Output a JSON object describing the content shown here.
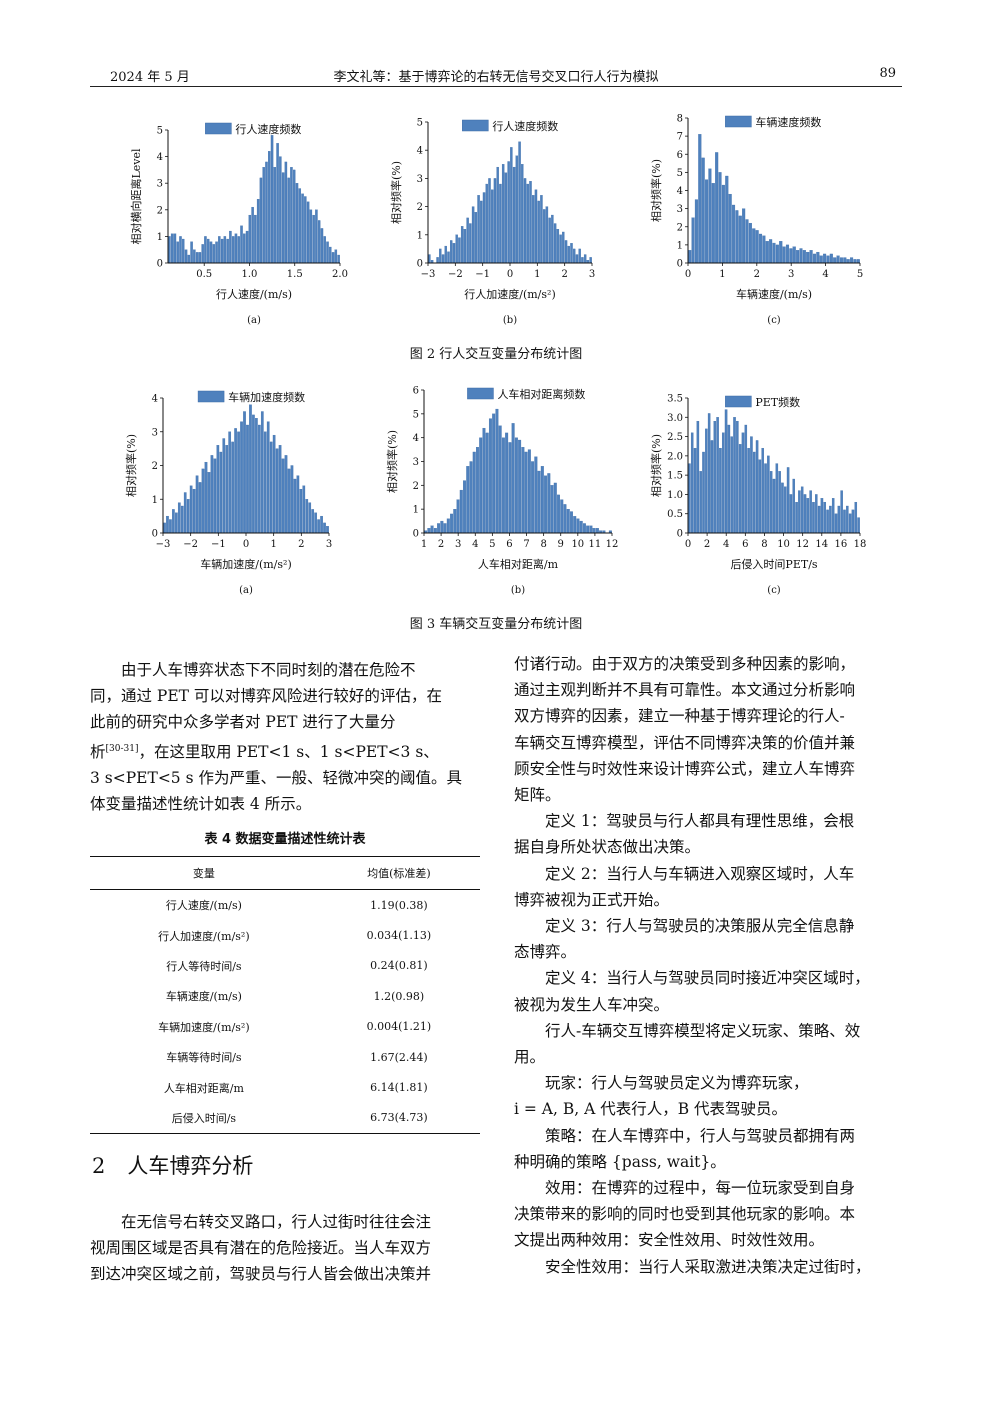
{
  "header": {
    "left": "2024 年 5 月",
    "center": "李文礼等：基于博弈论的右转无信号交叉口行人行为模拟",
    "right": "89"
  },
  "figure2": {
    "caption": "图 2    行人交互变量分布统计图",
    "panels": [
      {
        "letter": "(a)",
        "legend": "行人速度频数",
        "xlabel": "行人速度/(m/s)",
        "ylabel": "相对横向距离Level"
      },
      {
        "letter": "(b)",
        "legend": "行人速度频数",
        "xlabel": "行人加速度/(m/s²)",
        "ylabel": "相对频率(%)"
      },
      {
        "letter": "(c)",
        "legend": "车辆速度频数",
        "xlabel": "车辆速度/(m/s)",
        "ylabel": "相对频率(%)"
      }
    ]
  },
  "figure3": {
    "caption": "图 3    车辆交互变量分布统计图",
    "panels": [
      {
        "letter": "(a)",
        "legend": "车辆加速度频数",
        "xlabel": "车辆加速度/(m/s²)",
        "ylabel": "相对频率(%)"
      },
      {
        "letter": "(b)",
        "legend": "人车相对距离频数",
        "xlabel": "人车相对距离/m",
        "ylabel": "相对频率(%)"
      },
      {
        "letter": "(c)",
        "legend": "PET频数",
        "xlabel": "后侵入时间PET/s",
        "ylabel": "相对频率(%)"
      }
    ]
  },
  "chart_data": [
    {
      "type": "bar",
      "title": "",
      "xlabel": "行人速度/(m/s)",
      "ylabel": "相对横向距离Level",
      "legend": "行人速度频数",
      "xlim": [
        0.1,
        2.0
      ],
      "ylim": [
        0,
        5
      ],
      "xticks": [
        "0.5",
        "1.0",
        "1.5",
        "2.0"
      ],
      "yticks": [
        "0",
        "1",
        "2",
        "3",
        "4",
        "5"
      ],
      "values": [
        1.0,
        1.1,
        1.1,
        0.8,
        1.0,
        0.9,
        0.5,
        0.3,
        0.8,
        0.5,
        0.4,
        0.4,
        0.7,
        1.0,
        0.9,
        0.8,
        0.7,
        0.8,
        1.0,
        0.9,
        1.0,
        0.9,
        1.2,
        1.0,
        1.1,
        1.0,
        1.4,
        1.1,
        1.2,
        1.8,
        2.1,
        1.8,
        2.4,
        3.2,
        3.6,
        3.8,
        4.2,
        4.8,
        3.6,
        4.5,
        4.0,
        3.4,
        3.8,
        3.2,
        3.6,
        3.5,
        3.0,
        2.8,
        2.6,
        2.5,
        2.3,
        2.0,
        1.8,
        2.0,
        1.6,
        1.3,
        1.0,
        0.8,
        0.6,
        0.4,
        0.5,
        0.3
      ]
    },
    {
      "type": "bar",
      "title": "",
      "xlabel": "行人加速度/(m/s²)",
      "ylabel": "相对频率(%)",
      "legend": "行人速度频数",
      "xlim": [
        -3,
        3
      ],
      "ylim": [
        0,
        5
      ],
      "xticks": [
        "−3",
        "−2",
        "−1",
        "0",
        "1",
        "2",
        "3"
      ],
      "yticks": [
        "0",
        "1",
        "2",
        "3",
        "4",
        "5"
      ],
      "values": [
        0.3,
        0.1,
        0.0,
        0.2,
        0.5,
        0.3,
        0.6,
        0.4,
        0.8,
        0.7,
        1.0,
        0.9,
        1.3,
        1.2,
        1.6,
        1.4,
        2.0,
        1.8,
        2.4,
        2.2,
        2.5,
        2.8,
        3.0,
        2.6,
        3.0,
        3.4,
        2.8,
        3.5,
        3.2,
        3.6,
        4.1,
        3.4,
        3.8,
        4.3,
        3.5,
        3.0,
        2.8,
        2.9,
        2.4,
        2.6,
        2.2,
        2.4,
        1.9,
        2.0,
        1.6,
        1.7,
        1.4,
        1.2,
        1.0,
        1.1,
        0.8,
        0.6,
        0.7,
        0.5,
        0.3,
        0.5,
        0.2,
        0.3,
        0.1,
        0.2
      ]
    },
    {
      "type": "bar",
      "title": "",
      "xlabel": "车辆速度/(m/s)",
      "ylabel": "相对频率(%)",
      "legend": "车辆速度频数",
      "xlim": [
        0,
        5
      ],
      "ylim": [
        0,
        8
      ],
      "xticks": [
        "0",
        "1",
        "2",
        "3",
        "4",
        "5"
      ],
      "yticks": [
        "0",
        "1",
        "2",
        "3",
        "4",
        "5",
        "6",
        "7",
        "8"
      ],
      "values": [
        0.7,
        2.5,
        3.5,
        7.1,
        5.8,
        4.6,
        5.2,
        4.4,
        6.1,
        5.0,
        4.3,
        4.8,
        3.8,
        3.2,
        2.9,
        2.6,
        3.0,
        2.4,
        2.2,
        1.9,
        1.8,
        1.6,
        1.5,
        1.2,
        1.3,
        1.1,
        1.0,
        1.2,
        0.9,
        1.0,
        0.8,
        0.9,
        0.7,
        0.8,
        0.7,
        0.6,
        0.7,
        0.5,
        0.6,
        0.4,
        0.5,
        0.4,
        0.5,
        0.3,
        0.4,
        0.3,
        0.3,
        0.2,
        0.3,
        0.2,
        0.2
      ]
    },
    {
      "type": "bar",
      "title": "",
      "xlabel": "车辆加速度/(m/s²)",
      "ylabel": "相对频率(%)",
      "legend": "车辆加速度频数",
      "xlim": [
        -3,
        3
      ],
      "ylim": [
        0,
        4
      ],
      "xticks": [
        "−3",
        "−2",
        "−1",
        "0",
        "1",
        "2",
        "3"
      ],
      "yticks": [
        "0",
        "1",
        "2",
        "3",
        "4"
      ],
      "values": [
        0.3,
        0.5,
        0.4,
        0.7,
        0.6,
        0.9,
        0.8,
        1.2,
        1.0,
        1.4,
        1.3,
        1.7,
        1.5,
        1.9,
        2.1,
        1.8,
        2.3,
        2.2,
        2.6,
        2.4,
        2.8,
        2.6,
        3.0,
        2.7,
        3.1,
        3.0,
        3.3,
        3.6,
        3.2,
        3.8,
        3.5,
        3.4,
        3.2,
        3.6,
        3.0,
        3.3,
        2.7,
        2.9,
        2.5,
        2.6,
        2.2,
        2.3,
        1.9,
        2.0,
        1.6,
        1.7,
        1.3,
        1.4,
        1.0,
        0.9,
        0.7,
        0.6,
        0.4,
        0.5,
        0.3,
        0.2
      ]
    },
    {
      "type": "bar",
      "title": "",
      "xlabel": "人车相对距离/m",
      "ylabel": "相对频率(%)",
      "legend": "人车相对距离频数",
      "xlim": [
        1,
        12
      ],
      "ylim": [
        0,
        6
      ],
      "xticks": [
        "1",
        "2",
        "3",
        "4",
        "5",
        "6",
        "7",
        "8",
        "9",
        "10",
        "11",
        "12"
      ],
      "yticks": [
        "0",
        "1",
        "2",
        "3",
        "4",
        "5",
        "6"
      ],
      "values": [
        0.1,
        0.2,
        0.3,
        0.2,
        0.4,
        0.5,
        0.4,
        0.6,
        0.8,
        1.0,
        1.4,
        1.8,
        2.2,
        2.8,
        3.0,
        3.4,
        3.6,
        4.0,
        4.4,
        4.2,
        4.8,
        5.0,
        5.2,
        4.5,
        4.0,
        4.2,
        3.8,
        4.6,
        4.0,
        3.9,
        3.6,
        3.4,
        3.5,
        3.0,
        3.2,
        2.6,
        2.8,
        2.4,
        2.5,
        2.0,
        2.1,
        1.6,
        1.4,
        1.2,
        1.0,
        0.9,
        0.7,
        0.6,
        0.5,
        0.4,
        0.3,
        0.3,
        0.2,
        0.2,
        0.1,
        0.1,
        0.0,
        0.1
      ]
    },
    {
      "type": "bar",
      "title": "",
      "xlabel": "后侵入时间PET/s",
      "ylabel": "相对频率(%)",
      "legend": "PET频数",
      "xlim": [
        0,
        18
      ],
      "ylim": [
        0,
        3.5
      ],
      "xticks": [
        "0",
        "2",
        "4",
        "6",
        "8",
        "10",
        "12",
        "14",
        "16",
        "18"
      ],
      "yticks": [
        "0",
        "0.5",
        "1.0",
        "1.5",
        "2.0",
        "2.5",
        "3.0",
        "3.5"
      ],
      "values": [
        1.8,
        2.6,
        2.2,
        2.9,
        1.6,
        2.1,
        2.7,
        3.1,
        2.4,
        2.9,
        3.0,
        2.2,
        2.6,
        3.2,
        2.8,
        2.5,
        3.0,
        2.9,
        2.3,
        2.6,
        2.8,
        2.2,
        2.5,
        2.1,
        2.4,
        1.9,
        2.2,
        1.8,
        2.0,
        1.6,
        1.4,
        1.8,
        1.6,
        1.3,
        1.2,
        1.7,
        1.0,
        1.4,
        0.8,
        1.1,
        1.2,
        1.0,
        0.9,
        1.1,
        0.8,
        1.0,
        0.7,
        0.9,
        0.8,
        0.6,
        0.7,
        0.9,
        0.5,
        0.7,
        1.1,
        0.6,
        0.7,
        0.5,
        0.6,
        0.8,
        0.4
      ]
    }
  ],
  "left_text": {
    "p1_l1": "由于人车博弈状态下不同时刻的潜在危险不",
    "p1_l2": "同，通过 PET 可以对博弈风险进行较好的评估，在",
    "p1_l3": "此前的研究中众多学者对 PET 进行了大量分",
    "p1_l4a": "析",
    "p1_l4cite": "[30-31]",
    "p1_l4b": "，在这里取用 PET<1 s、1 s<PET<3 s、",
    "p1_l5": "3 s<PET<5 s 作为严重、一般、轻微冲突的阈值。具",
    "p1_l6": "体变量描述性统计如表 4 所示。"
  },
  "table4": {
    "title": "表 4    数据变量描述性统计表",
    "headers": [
      "变量",
      "均值(标准差)"
    ],
    "rows": [
      [
        "行人速度/(m/s)",
        "1.19(0.38)"
      ],
      [
        "行人加速度/(m/s²)",
        "0.034(1.13)"
      ],
      [
        "行人等待时间/s",
        "0.24(0.81)"
      ],
      [
        "车辆速度/(m/s)",
        "1.2(0.98)"
      ],
      [
        "车辆加速度/(m/s²)",
        "0.004(1.21)"
      ],
      [
        "车辆等待时间/s",
        "1.67(2.44)"
      ],
      [
        "人车相对距离/m",
        "6.14(1.81)"
      ],
      [
        "后侵入时间/s",
        "6.73(4.73)"
      ]
    ]
  },
  "section2": {
    "number": "2",
    "title": "人车博弈分析",
    "p_l1": "在无信号右转交叉路口，行人过街时往往会注",
    "p_l2": "视周围区域是否具有潜在的危险接近。当人车双方",
    "p_l3": "到达冲突区域之前，驾驶员与行人皆会做出决策并"
  },
  "right_text": {
    "l1": "付诸行动。由于双方的决策受到多种因素的影响，",
    "l2": "通过主观判断并不具有可靠性。本文通过分析影响",
    "l3": "双方博弈的因素，建立一种基于博弈理论的行人-",
    "l4": "车辆交互博弈模型，评估不同博弈决策的价值并兼",
    "l5": "顾安全性与时效性来设计博弈公式，建立人车博弈",
    "l6": "矩阵。",
    "d1_l1": "定义 1：驾驶员与行人都具有理性思维，会根",
    "d1_l2": "据自身所处状态做出决策。",
    "d2_l1": "定义 2：当行人与车辆进入观察区域时，人车",
    "d2_l2": "博弈被视为正式开始。",
    "d3_l1": "定义 3：行人与驾驶员的决策服从完全信息静",
    "d3_l2": "态博弈。",
    "d4_l1": "定义 4：当行人与驾驶员同时接近冲突区域时，",
    "d4_l2": "被视为发生人车冲突。",
    "m_l1": "行人-车辆交互博弈模型将定义玩家、策略、效",
    "m_l2": "用。",
    "pl_l1": "玩家：行人与驾驶员定义为博弈玩家，",
    "pl_l2": "i = A, B, A 代表行人，B 代表驾驶员。",
    "st_l1": "策略：在人车博弈中，行人与驾驶员都拥有两",
    "st_l2": "种明确的策略 {pass, wait}。",
    "ut_l1": "效用：在博弈的过程中，每一位玩家受到自身",
    "ut_l2": "决策带来的影响的同时也受到其他玩家的影响。本",
    "ut_l3": "文提出两种效用：安全性效用、时效性效用。",
    "sf_l1": "安全性效用：当行人采取激进决策决定过街时，"
  },
  "colors": {
    "bar": "#4f81bd",
    "bar_edge": "#3a6aa6",
    "text": "#111111"
  }
}
